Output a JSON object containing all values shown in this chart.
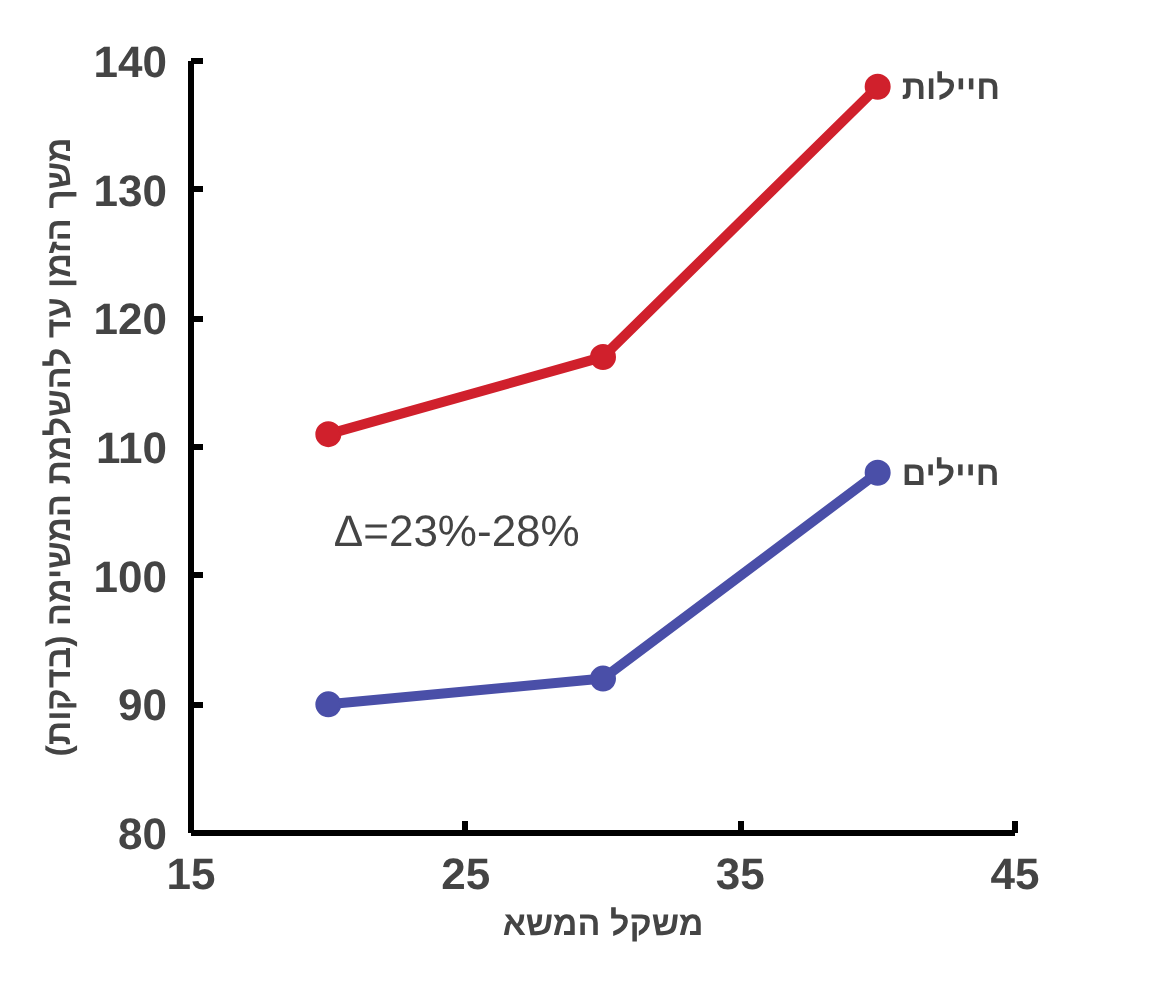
{
  "chart_data": {
    "type": "line",
    "xlabel": "משקל המשא",
    "ylabel": "משך הזמן עד להשלמת המשימה (בדקות)",
    "x": [
      20,
      30,
      40
    ],
    "series": [
      {
        "name": "חיילות",
        "color": "#d0202c",
        "values": [
          111,
          117,
          138
        ]
      },
      {
        "name": "חיילים",
        "color": "#4a4fa8",
        "values": [
          90,
          92,
          108
        ]
      }
    ],
    "xlim": [
      15,
      45
    ],
    "xticks": [
      15,
      25,
      35,
      45
    ],
    "ylim": [
      80,
      140
    ],
    "yticks": [
      80,
      90,
      100,
      110,
      120,
      130,
      140
    ],
    "annotations": [
      "Δ=23%-28%"
    ],
    "marker": "circle",
    "grid": false
  }
}
